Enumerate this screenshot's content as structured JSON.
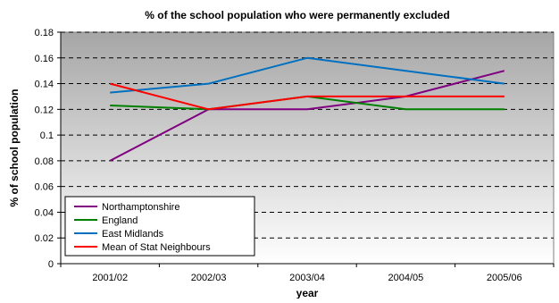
{
  "chart_data": {
    "type": "line",
    "title": "% of the school population who were permanently excluded",
    "xlabel": "year",
    "ylabel": "% of school population",
    "categories": [
      "2001/02",
      "2002/03",
      "2003/04",
      "2004/05",
      "2005/06"
    ],
    "ylim": [
      0,
      0.18
    ],
    "yticks": [
      "0",
      "0.02",
      "0.04",
      "0.06",
      "0.08",
      "0.1",
      "0.12",
      "0.14",
      "0.16",
      "0.18"
    ],
    "grid": true,
    "legend_position": "bottom-left",
    "plot_background": "#c0c0c0",
    "series": [
      {
        "name": "Northamptonshire",
        "color": "#800080",
        "values": [
          0.08,
          0.12,
          0.12,
          0.13,
          0.15
        ]
      },
      {
        "name": "England",
        "color": "#008000",
        "values": [
          0.123,
          0.12,
          0.13,
          0.12,
          0.12
        ]
      },
      {
        "name": "East Midlands",
        "color": "#0070c0",
        "values": [
          0.133,
          0.14,
          0.16,
          0.15,
          0.14
        ]
      },
      {
        "name": "Mean of Stat Neighbours",
        "color": "#ff0000",
        "values": [
          0.14,
          0.12,
          0.13,
          0.13,
          0.13
        ]
      }
    ]
  }
}
